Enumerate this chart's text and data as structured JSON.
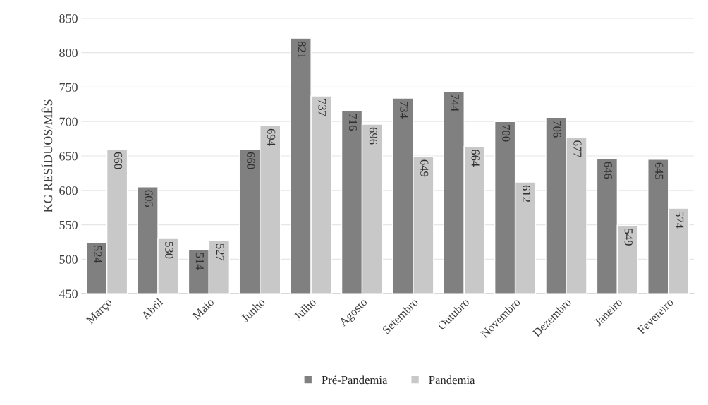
{
  "chart_data": {
    "type": "bar",
    "ylabel": "KG RESÍDUOS/MÊS",
    "categories": [
      "Março",
      "Abril",
      "Maio",
      "Junho",
      "Julho",
      "Agosto",
      "Setembro",
      "Outubro",
      "Novembro",
      "Dezembro",
      "Janeiro",
      "Fevereiro"
    ],
    "series": [
      {
        "name": "Pré-Pandemia",
        "color": "#808080",
        "values": [
          524,
          605,
          514,
          660,
          821,
          716,
          734,
          744,
          700,
          706,
          646,
          645
        ]
      },
      {
        "name": "Pandemia",
        "color": "#c8c8c8",
        "values": [
          660,
          530,
          527,
          694,
          737,
          696,
          649,
          664,
          612,
          677,
          549,
          574
        ]
      }
    ],
    "ylim": [
      450,
      850
    ],
    "yticks": [
      450,
      500,
      550,
      600,
      650,
      700,
      750,
      800,
      850
    ],
    "grid": "y",
    "legend": "bottom",
    "data_labels": true
  }
}
